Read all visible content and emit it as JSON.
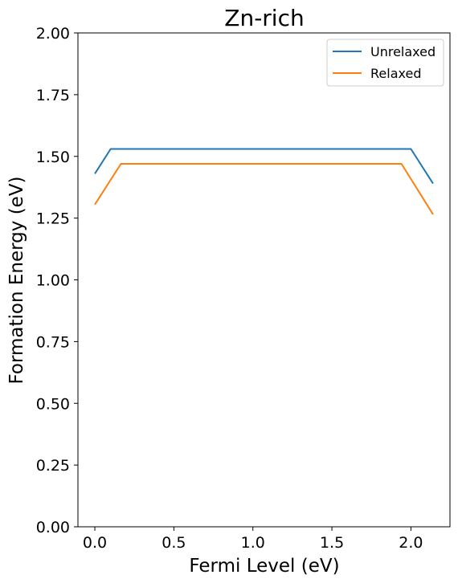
{
  "chart_data": {
    "type": "line",
    "title": "Zn-rich",
    "xlabel": "Fermi Level (eV)",
    "ylabel": "Formation Energy (eV)",
    "xlim": [
      -0.107,
      2.247
    ],
    "ylim": [
      0.0,
      2.0
    ],
    "xticks": [
      "0.0",
      "0.5",
      "1.0",
      "1.5",
      "2.0"
    ],
    "xtick_values": [
      0.0,
      0.5,
      1.0,
      1.5,
      2.0
    ],
    "yticks": [
      "0.00",
      "0.25",
      "0.50",
      "0.75",
      "1.00",
      "1.25",
      "1.50",
      "1.75",
      "2.00"
    ],
    "ytick_values": [
      0.0,
      0.25,
      0.5,
      0.75,
      1.0,
      1.25,
      1.5,
      1.75,
      2.0
    ],
    "grid": false,
    "legend_position": "top-right",
    "series": [
      {
        "name": "Unrelaxed",
        "color": "#1f77b4",
        "x": [
          0.0,
          0.1,
          2.0,
          2.14
        ],
        "y": [
          1.43,
          1.53,
          1.53,
          1.39
        ]
      },
      {
        "name": "Relaxed",
        "color": "#ff7f0e",
        "x": [
          0.0,
          0.165,
          1.94,
          2.14
        ],
        "y": [
          1.305,
          1.47,
          1.47,
          1.265
        ]
      }
    ]
  }
}
